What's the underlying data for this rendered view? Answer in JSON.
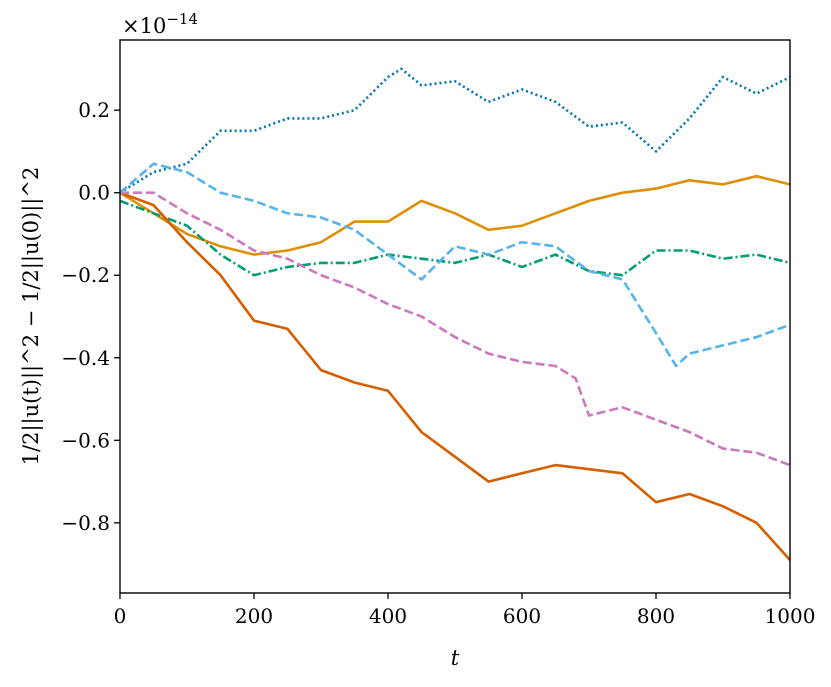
{
  "chart_data": {
    "type": "line",
    "title": "",
    "xlabel": "t",
    "ylabel": "1/2||u(t)||^2 − 1/2||u(0)||^2",
    "y_offset_text": "×10",
    "y_offset_exponent": "−14",
    "xlim": [
      0,
      1000
    ],
    "ylim": [
      -0.97,
      0.37
    ],
    "xticks": [
      0,
      200,
      400,
      600,
      800,
      1000
    ],
    "xtick_labels": [
      "0",
      "200",
      "400",
      "600",
      "800",
      "1000"
    ],
    "yticks": [
      0.2,
      0.0,
      -0.2,
      -0.4,
      -0.6,
      -0.8
    ],
    "ytick_labels": [
      "0.2",
      "0.0",
      "−0.2",
      "−0.4",
      "−0.6",
      "−0.8"
    ],
    "grid": false,
    "legend": "none",
    "series": [
      {
        "color": "#0173b2",
        "style": "dotted",
        "x": [
          0,
          50,
          100,
          150,
          200,
          250,
          300,
          350,
          400,
          420,
          450,
          500,
          550,
          600,
          650,
          700,
          750,
          800,
          850,
          900,
          950,
          1000
        ],
        "y": [
          0.0,
          0.05,
          0.07,
          0.15,
          0.15,
          0.18,
          0.18,
          0.2,
          0.28,
          0.3,
          0.26,
          0.27,
          0.22,
          0.25,
          0.22,
          0.16,
          0.17,
          0.1,
          0.18,
          0.28,
          0.24,
          0.28
        ]
      },
      {
        "color": "#de8f05",
        "style": "solid",
        "x": [
          0,
          50,
          100,
          150,
          200,
          250,
          300,
          350,
          400,
          450,
          500,
          550,
          600,
          650,
          700,
          750,
          800,
          850,
          900,
          950,
          1000
        ],
        "y": [
          0.0,
          -0.05,
          -0.1,
          -0.13,
          -0.15,
          -0.14,
          -0.12,
          -0.07,
          -0.07,
          -0.02,
          -0.05,
          -0.09,
          -0.08,
          -0.05,
          -0.02,
          0.0,
          0.01,
          0.03,
          0.02,
          0.04,
          0.02
        ]
      },
      {
        "color": "#029e73",
        "style": "dashdot",
        "x": [
          0,
          50,
          100,
          150,
          200,
          250,
          300,
          350,
          400,
          450,
          500,
          550,
          600,
          650,
          700,
          750,
          800,
          850,
          900,
          950,
          1000
        ],
        "y": [
          -0.02,
          -0.05,
          -0.08,
          -0.15,
          -0.2,
          -0.18,
          -0.17,
          -0.17,
          -0.15,
          -0.16,
          -0.17,
          -0.15,
          -0.18,
          -0.15,
          -0.19,
          -0.2,
          -0.14,
          -0.14,
          -0.16,
          -0.15,
          -0.17
        ]
      },
      {
        "color": "#d55e00",
        "style": "solid",
        "x": [
          0,
          50,
          100,
          150,
          200,
          250,
          300,
          350,
          400,
          450,
          500,
          550,
          600,
          650,
          700,
          750,
          800,
          850,
          900,
          950,
          1000
        ],
        "y": [
          0.0,
          -0.03,
          -0.12,
          -0.2,
          -0.31,
          -0.33,
          -0.43,
          -0.46,
          -0.48,
          -0.58,
          -0.64,
          -0.7,
          -0.68,
          -0.66,
          -0.67,
          -0.68,
          -0.75,
          -0.73,
          -0.76,
          -0.8,
          -0.89
        ]
      },
      {
        "color": "#cc78bc",
        "style": "dashed",
        "x": [
          0,
          50,
          100,
          150,
          200,
          250,
          300,
          350,
          400,
          450,
          500,
          550,
          600,
          650,
          680,
          700,
          750,
          800,
          850,
          900,
          950,
          1000
        ],
        "y": [
          0.0,
          0.0,
          -0.05,
          -0.09,
          -0.14,
          -0.16,
          -0.2,
          -0.23,
          -0.27,
          -0.3,
          -0.35,
          -0.39,
          -0.41,
          -0.42,
          -0.45,
          -0.54,
          -0.52,
          -0.55,
          -0.58,
          -0.62,
          -0.63,
          -0.66
        ]
      },
      {
        "color": "#56b4e9",
        "style": "dashed",
        "x": [
          0,
          50,
          100,
          150,
          200,
          250,
          300,
          350,
          400,
          450,
          500,
          550,
          600,
          650,
          700,
          750,
          800,
          830,
          850,
          900,
          950,
          1000
        ],
        "y": [
          0.0,
          0.07,
          0.05,
          0.0,
          -0.02,
          -0.05,
          -0.06,
          -0.09,
          -0.15,
          -0.21,
          -0.13,
          -0.15,
          -0.12,
          -0.13,
          -0.19,
          -0.21,
          -0.34,
          -0.42,
          -0.39,
          -0.37,
          -0.35,
          -0.32
        ]
      }
    ]
  }
}
